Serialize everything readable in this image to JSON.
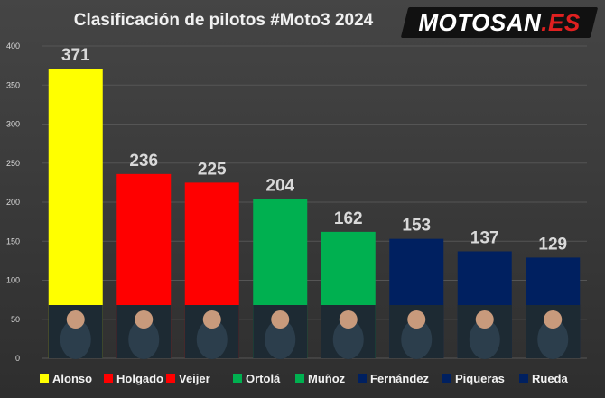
{
  "title": "Clasificación de pilotos #Moto3 2024",
  "logo": {
    "part1": "MOTOSAN",
    "part2": ".ES"
  },
  "colors": {
    "yellow": "#ffff00",
    "red": "#ff0000",
    "green": "#00b050",
    "navy": "#002060"
  },
  "chart_data": {
    "type": "bar",
    "title": "Clasificación de pilotos #Moto3 2024",
    "xlabel": "",
    "ylabel": "",
    "ylim": [
      0,
      400
    ],
    "yticks": [
      "0",
      "50",
      "100",
      "150",
      "200",
      "250",
      "300",
      "350",
      "400"
    ],
    "grid": true,
    "legend_position": "bottom",
    "categories": [
      "Alonso",
      "Holgado",
      "Veijer",
      "Ortolá",
      "Muñoz",
      "Fernández",
      "Piqueras",
      "Rueda"
    ],
    "values": [
      371,
      236,
      225,
      204,
      162,
      153,
      137,
      129
    ],
    "bar_colors": [
      "#ffff00",
      "#ff0000",
      "#ff0000",
      "#00b050",
      "#00b050",
      "#002060",
      "#002060",
      "#002060"
    ],
    "data_labels": [
      "371",
      "236",
      "225",
      "204",
      "162",
      "153",
      "137",
      "129"
    ]
  }
}
